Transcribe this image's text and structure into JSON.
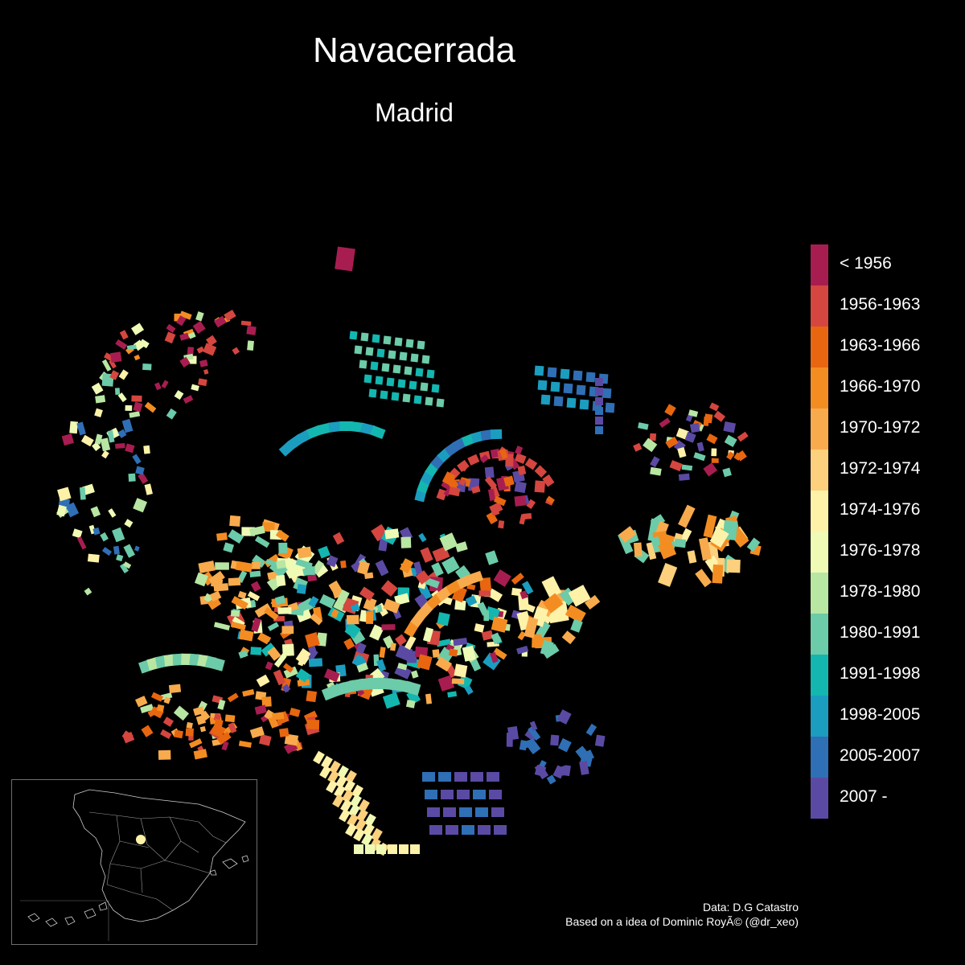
{
  "title": "Navacerrada",
  "subtitle": "Madrid",
  "legend": {
    "items": [
      {
        "label": "< 1956",
        "color": "#a81d50"
      },
      {
        "label": "1956-1963",
        "color": "#d4463f"
      },
      {
        "label": "1963-1966",
        "color": "#e8660f"
      },
      {
        "label": "1966-1970",
        "color": "#f38d22"
      },
      {
        "label": "1970-1972",
        "color": "#f8ab4d"
      },
      {
        "label": "1972-1974",
        "color": "#fcd07c"
      },
      {
        "label": "1974-1976",
        "color": "#fef2a8"
      },
      {
        "label": "1976-1978",
        "color": "#effab5"
      },
      {
        "label": "1978-1980",
        "color": "#b8e6a3"
      },
      {
        "label": "1980-1991",
        "color": "#6ccba8"
      },
      {
        "label": "1991-1998",
        "color": "#13b7b0"
      },
      {
        "label": "1998-2005",
        "color": "#1b9dc0"
      },
      {
        "label": "2005-2007",
        "color": "#2f6fb6"
      },
      {
        "label": "2007 -",
        "color": "#5b4aa3"
      }
    ]
  },
  "credits": {
    "line1": "Data: D.G Catastro",
    "line2": "Based on a idea of Dominic RoyÃ© (@dr_xeo)"
  },
  "inset": {
    "marker_color": "#fef2a8"
  }
}
